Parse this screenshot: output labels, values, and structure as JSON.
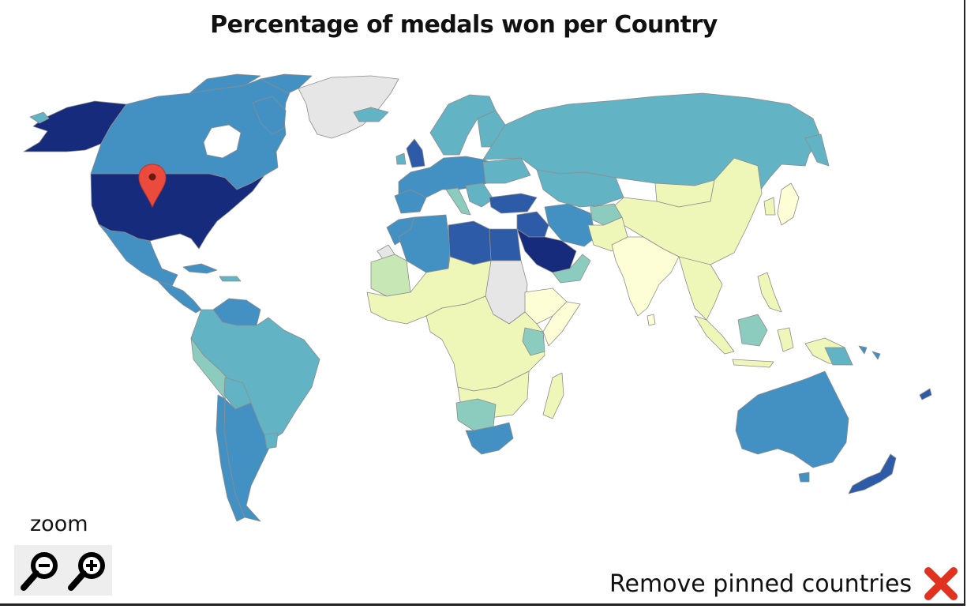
{
  "title": "Percentage of medals won per Country",
  "zoom": {
    "label": "zoom",
    "zoom_out_icon": "zoom-out-magnifier-icon",
    "zoom_in_icon": "zoom-in-magnifier-icon"
  },
  "remove_pinned": {
    "label": "Remove pinned countries",
    "icon": "red-x-icon",
    "color": "#e0321e"
  },
  "pin": {
    "icon": "map-pin-icon",
    "color": "#ea4b3c",
    "country": "United States"
  },
  "colors": {
    "darkest": "#172b7c",
    "dark": "#2d5ba7",
    "mid": "#4390c3",
    "teal": "#62b3c4",
    "light_teal": "#8cccbe",
    "pale_green": "#c7e8b5",
    "pale_yellow": "#eef7b8",
    "cream": "#fdfed6",
    "no_data": "#e6e6e6"
  }
}
